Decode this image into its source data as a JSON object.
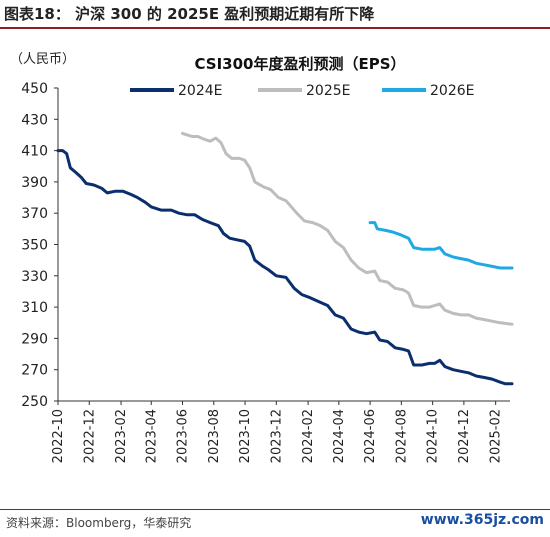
{
  "figure_title": "图表18：  沪深 300 的 2025E 盈利预期近期有所下降",
  "unit_label": "（人民币）",
  "source": "资料来源：Bloomberg，华泰研究",
  "watermark": "www.365jz.com",
  "chart_data": {
    "type": "line",
    "title": "CSI300年度盈利预测（EPS）",
    "xlabel": "",
    "ylabel": "",
    "ylim": [
      250,
      450
    ],
    "yticks": [
      250,
      270,
      290,
      310,
      330,
      350,
      370,
      390,
      410,
      430,
      450
    ],
    "xlim": [
      "2022-10",
      "2025-03"
    ],
    "xticks": [
      "2022-10",
      "2022-12",
      "2023-02",
      "2023-04",
      "2023-06",
      "2023-08",
      "2023-10",
      "2023-12",
      "2024-02",
      "2024-04",
      "2024-06",
      "2024-08",
      "2024-10",
      "2024-12",
      "2025-02"
    ],
    "grid": false,
    "legend": "top",
    "series": [
      {
        "name": "2024E",
        "color": "#0b2e6e",
        "points": [
          [
            "2022-10-01",
            410
          ],
          [
            "2022-10-10",
            410
          ],
          [
            "2022-10-18",
            408
          ],
          [
            "2022-10-25",
            399
          ],
          [
            "2022-11-05",
            396
          ],
          [
            "2022-11-15",
            393
          ],
          [
            "2022-11-25",
            389
          ],
          [
            "2022-12-10",
            388
          ],
          [
            "2022-12-25",
            386
          ],
          [
            "2023-01-05",
            383
          ],
          [
            "2023-01-20",
            384
          ],
          [
            "2023-02-05",
            384
          ],
          [
            "2023-02-20",
            382
          ],
          [
            "2023-03-05",
            380
          ],
          [
            "2023-03-20",
            377
          ],
          [
            "2023-04-01",
            374
          ],
          [
            "2023-04-20",
            372
          ],
          [
            "2023-05-10",
            372
          ],
          [
            "2023-05-25",
            370
          ],
          [
            "2023-06-10",
            369
          ],
          [
            "2023-06-25",
            369
          ],
          [
            "2023-07-10",
            366
          ],
          [
            "2023-07-25",
            364
          ],
          [
            "2023-08-10",
            362
          ],
          [
            "2023-08-20",
            357
          ],
          [
            "2023-09-01",
            354
          ],
          [
            "2023-09-15",
            353
          ],
          [
            "2023-09-30",
            352
          ],
          [
            "2023-10-10",
            349
          ],
          [
            "2023-10-20",
            340
          ],
          [
            "2023-11-05",
            336
          ],
          [
            "2023-11-15",
            334
          ],
          [
            "2023-12-01",
            330
          ],
          [
            "2023-12-20",
            329
          ],
          [
            "2024-01-05",
            322
          ],
          [
            "2024-01-20",
            318
          ],
          [
            "2024-02-05",
            316
          ],
          [
            "2024-02-25",
            313
          ],
          [
            "2024-03-10",
            311
          ],
          [
            "2024-03-25",
            305
          ],
          [
            "2024-04-10",
            303
          ],
          [
            "2024-04-25",
            296
          ],
          [
            "2024-05-10",
            294
          ],
          [
            "2024-05-25",
            293
          ],
          [
            "2024-06-10",
            294
          ],
          [
            "2024-06-20",
            289
          ],
          [
            "2024-07-05",
            288
          ],
          [
            "2024-07-20",
            284
          ],
          [
            "2024-08-05",
            283
          ],
          [
            "2024-08-15",
            282
          ],
          [
            "2024-08-25",
            273
          ],
          [
            "2024-09-10",
            273
          ],
          [
            "2024-09-25",
            274
          ],
          [
            "2024-10-05",
            274
          ],
          [
            "2024-10-15",
            276
          ],
          [
            "2024-10-25",
            272
          ],
          [
            "2024-11-10",
            270
          ],
          [
            "2024-11-25",
            269
          ],
          [
            "2024-12-10",
            268
          ],
          [
            "2024-12-25",
            266
          ],
          [
            "2025-01-10",
            265
          ],
          [
            "2025-01-25",
            264
          ],
          [
            "2025-02-10",
            262
          ],
          [
            "2025-02-20",
            261
          ],
          [
            "2025-03-05",
            261
          ]
        ]
      },
      {
        "name": "2025E",
        "color": "#bdbdbd",
        "points": [
          [
            "2023-06-01",
            421
          ],
          [
            "2023-06-10",
            420
          ],
          [
            "2023-06-20",
            419
          ],
          [
            "2023-07-01",
            419
          ],
          [
            "2023-07-15",
            417
          ],
          [
            "2023-07-25",
            416
          ],
          [
            "2023-08-05",
            418
          ],
          [
            "2023-08-15",
            415
          ],
          [
            "2023-08-25",
            408
          ],
          [
            "2023-09-05",
            405
          ],
          [
            "2023-09-20",
            405
          ],
          [
            "2023-09-30",
            404
          ],
          [
            "2023-10-10",
            399
          ],
          [
            "2023-10-20",
            390
          ],
          [
            "2023-11-05",
            387
          ],
          [
            "2023-11-20",
            385
          ],
          [
            "2023-12-05",
            380
          ],
          [
            "2023-12-20",
            378
          ],
          [
            "2024-01-10",
            370
          ],
          [
            "2024-01-25",
            365
          ],
          [
            "2024-02-10",
            364
          ],
          [
            "2024-02-25",
            362
          ],
          [
            "2024-03-10",
            359
          ],
          [
            "2024-03-25",
            352
          ],
          [
            "2024-04-10",
            348
          ],
          [
            "2024-04-25",
            340
          ],
          [
            "2024-05-10",
            335
          ],
          [
            "2024-05-25",
            332
          ],
          [
            "2024-06-10",
            333
          ],
          [
            "2024-06-20",
            327
          ],
          [
            "2024-07-05",
            326
          ],
          [
            "2024-07-20",
            322
          ],
          [
            "2024-08-05",
            321
          ],
          [
            "2024-08-15",
            319
          ],
          [
            "2024-08-25",
            311
          ],
          [
            "2024-09-10",
            310
          ],
          [
            "2024-09-25",
            310
          ],
          [
            "2024-10-05",
            311
          ],
          [
            "2024-10-15",
            312
          ],
          [
            "2024-10-25",
            308
          ],
          [
            "2024-11-10",
            306
          ],
          [
            "2024-11-25",
            305
          ],
          [
            "2024-12-10",
            305
          ],
          [
            "2024-12-25",
            303
          ],
          [
            "2025-01-10",
            302
          ],
          [
            "2025-01-25",
            301
          ],
          [
            "2025-02-10",
            300
          ],
          [
            "2025-03-05",
            299
          ]
        ]
      },
      {
        "name": "2026E",
        "color": "#1fa9e1",
        "points": [
          [
            "2024-06-01",
            364
          ],
          [
            "2024-06-10",
            364
          ],
          [
            "2024-06-15",
            360
          ],
          [
            "2024-07-01",
            359
          ],
          [
            "2024-07-15",
            358
          ],
          [
            "2024-08-01",
            356
          ],
          [
            "2024-08-15",
            354
          ],
          [
            "2024-08-25",
            348
          ],
          [
            "2024-09-10",
            347
          ],
          [
            "2024-09-25",
            347
          ],
          [
            "2024-10-05",
            347
          ],
          [
            "2024-10-15",
            348
          ],
          [
            "2024-10-25",
            344
          ],
          [
            "2024-11-10",
            342
          ],
          [
            "2024-11-25",
            341
          ],
          [
            "2024-12-10",
            340
          ],
          [
            "2024-12-25",
            338
          ],
          [
            "2025-01-10",
            337
          ],
          [
            "2025-01-25",
            336
          ],
          [
            "2025-02-10",
            335
          ],
          [
            "2025-03-05",
            335
          ]
        ]
      }
    ]
  }
}
